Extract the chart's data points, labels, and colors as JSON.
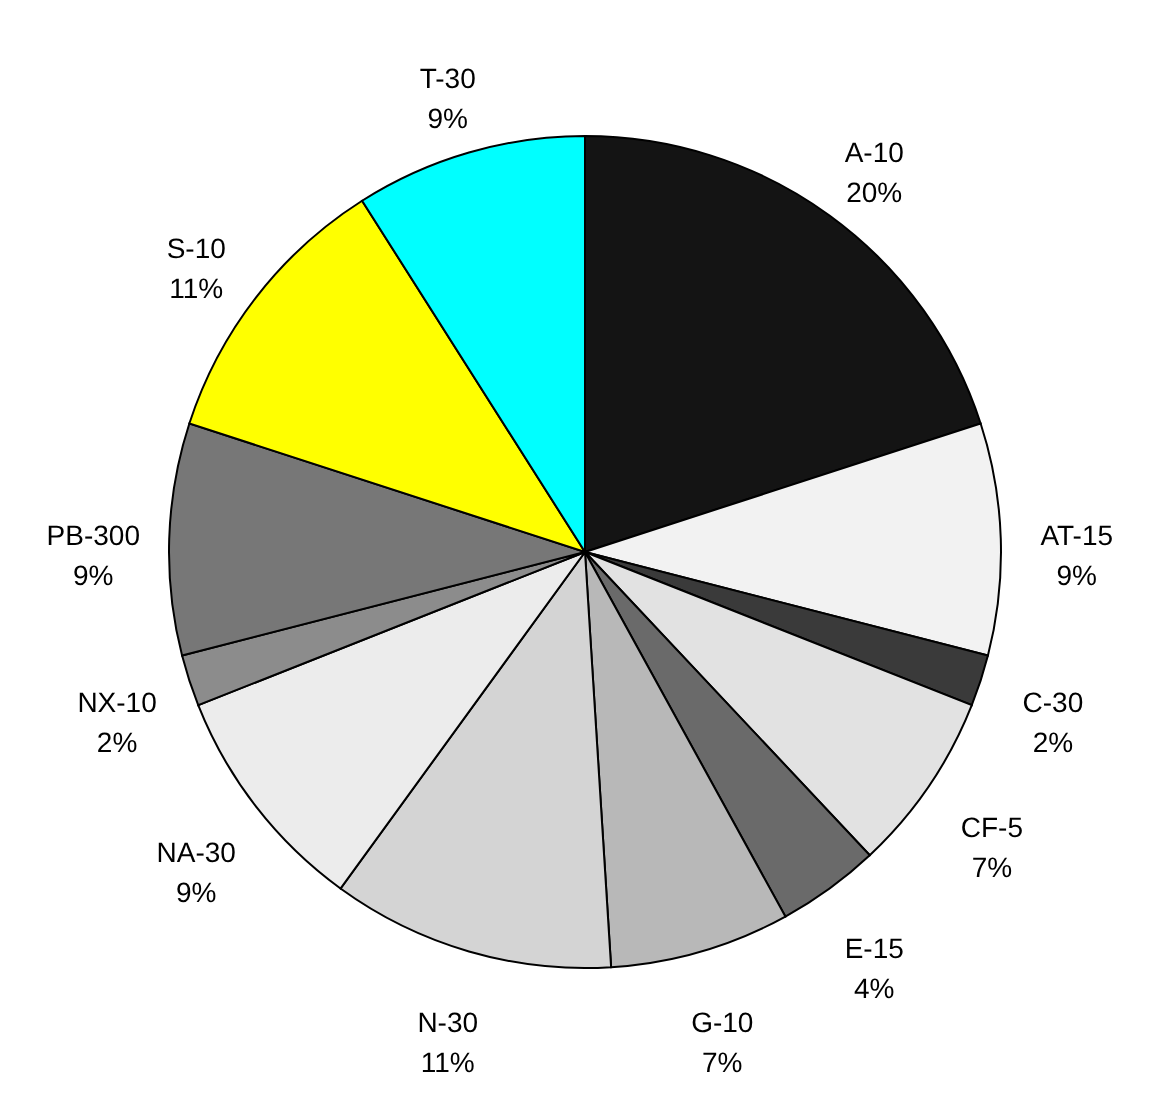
{
  "chart_data": {
    "type": "pie",
    "categories": [
      "A-10",
      "AT-15",
      "C-30",
      "CF-5",
      "E-15",
      "G-10",
      "N-30",
      "NA-30",
      "NX-10",
      "PB-300",
      "S-10",
      "T-30"
    ],
    "values": [
      20,
      9,
      2,
      7,
      4,
      7,
      11,
      9,
      2,
      9,
      11,
      9
    ],
    "value_labels": [
      "20%",
      "9%",
      "2%",
      "7%",
      "4%",
      "7%",
      "11%",
      "9%",
      "2%",
      "9%",
      "11%",
      "9%"
    ],
    "colors": [
      "#141414",
      "#f2f2f2",
      "#3a3a3a",
      "#e2e2e2",
      "#6a6a6a",
      "#b8b8b8",
      "#d4d4d4",
      "#ececec",
      "#8c8c8c",
      "#777777",
      "#ffff00",
      "#00ffff"
    ]
  }
}
